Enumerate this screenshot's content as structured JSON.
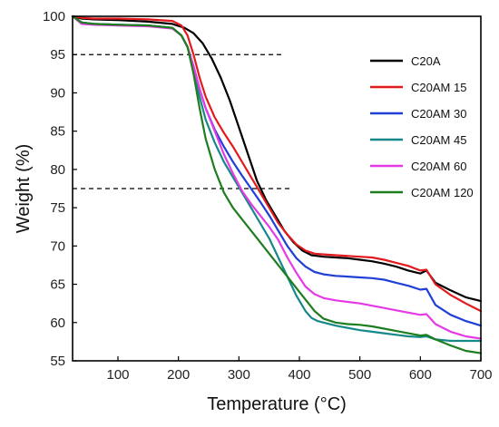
{
  "chart_data": {
    "type": "line",
    "title": "",
    "xlabel": "Temperature (°C)",
    "ylabel": "Weight (%)",
    "xlim": [
      25,
      700
    ],
    "ylim": [
      55,
      100
    ],
    "xticks": [
      100,
      200,
      300,
      400,
      500,
      600,
      700
    ],
    "yticks": [
      55,
      60,
      65,
      70,
      75,
      80,
      85,
      90,
      95,
      100
    ],
    "grid": false,
    "legend_position": "right",
    "reference_lines": [
      {
        "y": 95,
        "x_start": 25,
        "x_end": 370,
        "style": "dashed"
      },
      {
        "y": 77.5,
        "x_start": 25,
        "x_end": 385,
        "style": "dashed"
      }
    ],
    "series": [
      {
        "name": "C20A",
        "color": "#000000",
        "x": [
          25,
          40,
          60,
          100,
          150,
          190,
          210,
          225,
          240,
          255,
          270,
          285,
          300,
          315,
          330,
          345,
          360,
          375,
          390,
          405,
          420,
          440,
          460,
          480,
          500,
          520,
          540,
          560,
          580,
          600,
          610,
          625,
          650,
          675,
          700
        ],
        "y": [
          100,
          99.7,
          99.6,
          99.5,
          99.3,
          99.0,
          98.5,
          97.8,
          96.5,
          94.5,
          92.0,
          89.0,
          85.5,
          82.0,
          78.5,
          76.0,
          74.0,
          72.0,
          70.5,
          69.4,
          68.8,
          68.6,
          68.5,
          68.4,
          68.2,
          68.0,
          67.7,
          67.3,
          66.8,
          66.4,
          66.8,
          65.2,
          64.2,
          63.3,
          62.8
        ]
      },
      {
        "name": "C20AM 15",
        "color": "#e31a1c",
        "x": [
          25,
          40,
          60,
          100,
          150,
          190,
          205,
          215,
          225,
          235,
          245,
          260,
          275,
          290,
          305,
          320,
          335,
          350,
          365,
          380,
          395,
          410,
          425,
          440,
          460,
          480,
          500,
          520,
          540,
          560,
          580,
          600,
          610,
          625,
          650,
          675,
          700
        ],
        "y": [
          100,
          99.8,
          99.7,
          99.7,
          99.6,
          99.4,
          98.8,
          97.5,
          95.0,
          92.0,
          89.5,
          86.8,
          84.8,
          83.0,
          81.0,
          79.0,
          77.0,
          75.0,
          73.0,
          71.5,
          70.2,
          69.4,
          69.0,
          68.9,
          68.8,
          68.7,
          68.6,
          68.5,
          68.2,
          67.8,
          67.4,
          66.8,
          66.9,
          65.0,
          63.6,
          62.5,
          61.5
        ]
      },
      {
        "name": "C20AM 30",
        "color": "#1f3fd6",
        "x": [
          25,
          40,
          60,
          100,
          150,
          190,
          205,
          215,
          225,
          235,
          245,
          260,
          275,
          290,
          305,
          320,
          335,
          350,
          365,
          380,
          395,
          410,
          425,
          440,
          460,
          480,
          500,
          520,
          540,
          560,
          580,
          600,
          610,
          625,
          650,
          675,
          700
        ],
        "y": [
          100,
          99.2,
          99.0,
          98.9,
          98.8,
          98.5,
          97.5,
          96.0,
          93.5,
          90.5,
          88.0,
          85.2,
          83.0,
          81.0,
          79.2,
          77.5,
          75.8,
          74.0,
          72.0,
          70.0,
          68.4,
          67.3,
          66.6,
          66.3,
          66.1,
          66.0,
          65.9,
          65.8,
          65.6,
          65.2,
          64.8,
          64.3,
          64.4,
          62.3,
          61.0,
          60.2,
          59.6
        ]
      },
      {
        "name": "C20AM 45",
        "color": "#17888a",
        "x": [
          25,
          40,
          60,
          100,
          150,
          190,
          205,
          215,
          225,
          235,
          245,
          260,
          275,
          290,
          305,
          320,
          335,
          350,
          365,
          380,
          395,
          410,
          420,
          430,
          440,
          460,
          480,
          500,
          520,
          540,
          560,
          580,
          600,
          610,
          625,
          650,
          675,
          700
        ],
        "y": [
          100,
          99.2,
          99.0,
          98.9,
          98.8,
          98.5,
          97.5,
          96.0,
          93.0,
          89.5,
          86.5,
          83.5,
          81.0,
          79.0,
          77.0,
          75.0,
          73.0,
          71.0,
          68.5,
          66.0,
          63.5,
          61.5,
          60.6,
          60.2,
          60.0,
          59.6,
          59.3,
          59.0,
          58.8,
          58.6,
          58.4,
          58.2,
          58.1,
          58.2,
          57.8,
          57.6,
          57.6,
          57.6
        ]
      },
      {
        "name": "C20AM 60",
        "color": "#e63ae6",
        "x": [
          25,
          40,
          60,
          100,
          150,
          190,
          205,
          215,
          225,
          235,
          245,
          260,
          275,
          290,
          305,
          320,
          335,
          350,
          365,
          380,
          395,
          410,
          425,
          440,
          460,
          480,
          500,
          520,
          540,
          560,
          580,
          600,
          610,
          625,
          650,
          675,
          700
        ],
        "y": [
          100,
          99.0,
          98.9,
          98.8,
          98.7,
          98.4,
          97.5,
          96.0,
          93.5,
          90.5,
          88.0,
          85.0,
          82.0,
          79.5,
          77.2,
          75.5,
          74.0,
          72.5,
          70.8,
          68.5,
          66.5,
          64.7,
          63.7,
          63.2,
          62.9,
          62.7,
          62.5,
          62.2,
          61.9,
          61.6,
          61.3,
          61.0,
          61.1,
          59.8,
          58.8,
          58.2,
          57.9
        ]
      },
      {
        "name": "C20AM 120",
        "color": "#1e7d1e",
        "x": [
          25,
          40,
          60,
          100,
          150,
          190,
          205,
          215,
          225,
          235,
          245,
          260,
          275,
          290,
          305,
          320,
          335,
          350,
          365,
          380,
          395,
          410,
          425,
          440,
          460,
          480,
          500,
          520,
          540,
          560,
          580,
          600,
          610,
          625,
          650,
          675,
          700
        ],
        "y": [
          100,
          99.2,
          99.0,
          98.9,
          98.8,
          98.5,
          97.5,
          96.0,
          92.5,
          88.0,
          84.0,
          80.0,
          77.0,
          75.0,
          73.5,
          72.0,
          70.5,
          69.0,
          67.5,
          66.0,
          64.5,
          63.0,
          61.5,
          60.5,
          60.0,
          59.8,
          59.7,
          59.5,
          59.2,
          58.9,
          58.6,
          58.3,
          58.4,
          57.8,
          57.0,
          56.3,
          56.0
        ]
      }
    ]
  }
}
